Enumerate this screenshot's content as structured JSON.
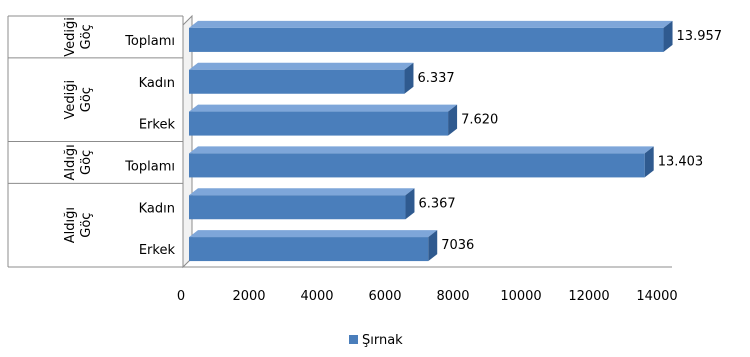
{
  "chart_data": {
    "type": "bar",
    "orientation": "horizontal",
    "style": "3d",
    "categories": [
      {
        "group": "Vediği Göç",
        "label": "Toplamı",
        "value": 13957,
        "data_label": "13.957"
      },
      {
        "group": "Vediği Göç",
        "label": "Kadın",
        "value": 6337,
        "data_label": "6.337"
      },
      {
        "group": "Vediği Göç",
        "label": "Erkek",
        "value": 7620,
        "data_label": "7.620"
      },
      {
        "group": "Aldığı Göç",
        "label": "Toplamı",
        "value": 13403,
        "data_label": "13.403"
      },
      {
        "group": "Aldığı Göç",
        "label": "Kadın",
        "value": 6367,
        "data_label": "6.367"
      },
      {
        "group": "Aldığı Göç",
        "label": "Erkek",
        "value": 7036,
        "data_label": "7036"
      }
    ],
    "groups": [
      {
        "line1": "Vediği",
        "line2": "Göç"
      },
      {
        "line1": "Vediği",
        "line2": "Göç"
      },
      {
        "line1": "Aldığı",
        "line2": "Göç"
      },
      {
        "line1": "Aldığı",
        "line2": "Göç"
      }
    ],
    "series": [
      {
        "name": "Şırnak",
        "color": "#4a7ebb"
      }
    ],
    "xlim": [
      0,
      14000
    ],
    "xticks": [
      "0",
      "2000",
      "4000",
      "6000",
      "8000",
      "10000",
      "12000",
      "14000"
    ],
    "legend": {
      "label": "Şırnak",
      "position": "bottom"
    },
    "grid": false
  }
}
